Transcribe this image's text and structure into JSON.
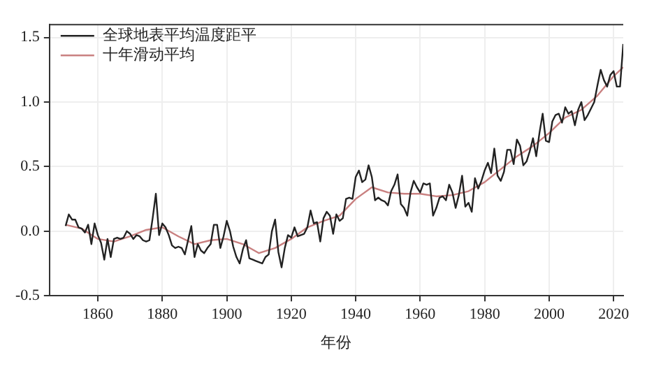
{
  "chart_data": {
    "type": "line",
    "xlabel": "年份",
    "x": [
      1850,
      1851,
      1852,
      1853,
      1854,
      1855,
      1856,
      1857,
      1858,
      1859,
      1860,
      1861,
      1862,
      1863,
      1864,
      1865,
      1866,
      1867,
      1868,
      1869,
      1870,
      1871,
      1872,
      1873,
      1874,
      1875,
      1876,
      1877,
      1878,
      1879,
      1880,
      1881,
      1882,
      1883,
      1884,
      1885,
      1886,
      1887,
      1888,
      1889,
      1890,
      1891,
      1892,
      1893,
      1894,
      1895,
      1896,
      1897,
      1898,
      1899,
      1900,
      1901,
      1902,
      1903,
      1904,
      1905,
      1906,
      1907,
      1908,
      1909,
      1910,
      1911,
      1912,
      1913,
      1914,
      1915,
      1916,
      1917,
      1918,
      1919,
      1920,
      1921,
      1922,
      1923,
      1924,
      1925,
      1926,
      1927,
      1928,
      1929,
      1930,
      1931,
      1932,
      1933,
      1934,
      1935,
      1936,
      1937,
      1938,
      1939,
      1940,
      1941,
      1942,
      1943,
      1944,
      1945,
      1946,
      1947,
      1948,
      1949,
      1950,
      1951,
      1952,
      1953,
      1954,
      1955,
      1956,
      1957,
      1958,
      1959,
      1960,
      1961,
      1962,
      1963,
      1964,
      1965,
      1966,
      1967,
      1968,
      1969,
      1970,
      1971,
      1972,
      1973,
      1974,
      1975,
      1976,
      1977,
      1978,
      1979,
      1980,
      1981,
      1982,
      1983,
      1984,
      1985,
      1986,
      1987,
      1988,
      1989,
      1990,
      1991,
      1992,
      1993,
      1994,
      1995,
      1996,
      1997,
      1998,
      1999,
      2000,
      2001,
      2002,
      2003,
      2004,
      2005,
      2006,
      2007,
      2008,
      2009,
      2010,
      2011,
      2012,
      2013,
      2014,
      2015,
      2016,
      2017,
      2018,
      2019,
      2020,
      2021,
      2022,
      2023
    ],
    "series": [
      {
        "name": "全球地表平均温度距平",
        "color": "#222222",
        "values": [
          0.04,
          0.13,
          0.09,
          0.09,
          0.03,
          0.02,
          -0.01,
          0.05,
          -0.1,
          0.06,
          -0.03,
          -0.09,
          -0.22,
          -0.06,
          -0.2,
          -0.06,
          -0.05,
          -0.06,
          -0.05,
          0.0,
          -0.02,
          -0.06,
          -0.03,
          -0.04,
          -0.07,
          -0.08,
          -0.07,
          0.1,
          0.29,
          -0.03,
          0.06,
          0.03,
          -0.03,
          -0.11,
          -0.13,
          -0.12,
          -0.13,
          -0.18,
          -0.07,
          0.04,
          -0.2,
          -0.1,
          -0.15,
          -0.17,
          -0.13,
          -0.1,
          0.05,
          0.05,
          -0.13,
          -0.04,
          0.08,
          0.0,
          -0.12,
          -0.2,
          -0.25,
          -0.14,
          -0.07,
          -0.21,
          -0.22,
          -0.23,
          -0.24,
          -0.25,
          -0.2,
          -0.18,
          0.0,
          0.09,
          -0.16,
          -0.28,
          -0.13,
          -0.03,
          -0.05,
          0.03,
          -0.04,
          -0.03,
          -0.02,
          0.03,
          0.16,
          0.06,
          0.07,
          -0.08,
          0.1,
          0.15,
          0.12,
          -0.02,
          0.13,
          0.08,
          0.1,
          0.25,
          0.26,
          0.25,
          0.42,
          0.47,
          0.38,
          0.4,
          0.51,
          0.42,
          0.24,
          0.26,
          0.24,
          0.23,
          0.2,
          0.31,
          0.36,
          0.44,
          0.21,
          0.18,
          0.12,
          0.3,
          0.39,
          0.34,
          0.3,
          0.37,
          0.36,
          0.37,
          0.12,
          0.18,
          0.26,
          0.27,
          0.24,
          0.36,
          0.3,
          0.18,
          0.28,
          0.43,
          0.19,
          0.22,
          0.15,
          0.41,
          0.33,
          0.39,
          0.47,
          0.53,
          0.45,
          0.64,
          0.43,
          0.39,
          0.46,
          0.63,
          0.63,
          0.52,
          0.71,
          0.66,
          0.51,
          0.54,
          0.62,
          0.72,
          0.58,
          0.76,
          0.91,
          0.7,
          0.69,
          0.85,
          0.9,
          0.91,
          0.84,
          0.96,
          0.91,
          0.93,
          0.82,
          0.94,
          1.0,
          0.86,
          0.9,
          0.95,
          1.0,
          1.13,
          1.25,
          1.17,
          1.12,
          1.21,
          1.24,
          1.12,
          1.12,
          1.45
        ]
      },
      {
        "name": "十年滑动平均",
        "color": "#c98080",
        "x": [
          1850,
          1855,
          1860,
          1865,
          1870,
          1875,
          1880,
          1885,
          1890,
          1895,
          1900,
          1905,
          1910,
          1915,
          1920,
          1925,
          1930,
          1935,
          1940,
          1945,
          1950,
          1955,
          1960,
          1965,
          1970,
          1975,
          1980,
          1985,
          1990,
          1995,
          2000,
          2005,
          2010,
          2015,
          2020,
          2023
        ],
        "values": [
          0.05,
          0.02,
          -0.06,
          -0.08,
          -0.04,
          0.01,
          0.03,
          -0.04,
          -0.1,
          -0.07,
          -0.06,
          -0.1,
          -0.17,
          -0.13,
          -0.06,
          0.03,
          0.08,
          0.12,
          0.25,
          0.34,
          0.3,
          0.29,
          0.29,
          0.27,
          0.28,
          0.31,
          0.38,
          0.48,
          0.58,
          0.66,
          0.76,
          0.88,
          0.94,
          1.05,
          1.2,
          1.27
        ]
      }
    ],
    "xlim": [
      1845,
      2023
    ],
    "xticks": [
      1860,
      1880,
      1900,
      1920,
      1940,
      1960,
      1980,
      2000,
      2020
    ],
    "ylim": [
      -0.5,
      1.6
    ],
    "yticks": [
      {
        "value": -0.5,
        "label": "-0.5"
      },
      {
        "value": 0,
        "label": "0.0"
      },
      {
        "value": 0.5,
        "label": "0.5"
      },
      {
        "value": 1,
        "label": "1.0"
      },
      {
        "value": 1.5,
        "label": "1.5"
      }
    ],
    "grid": true,
    "legend": "top left",
    "marker": "none",
    "line_style": "solid"
  }
}
